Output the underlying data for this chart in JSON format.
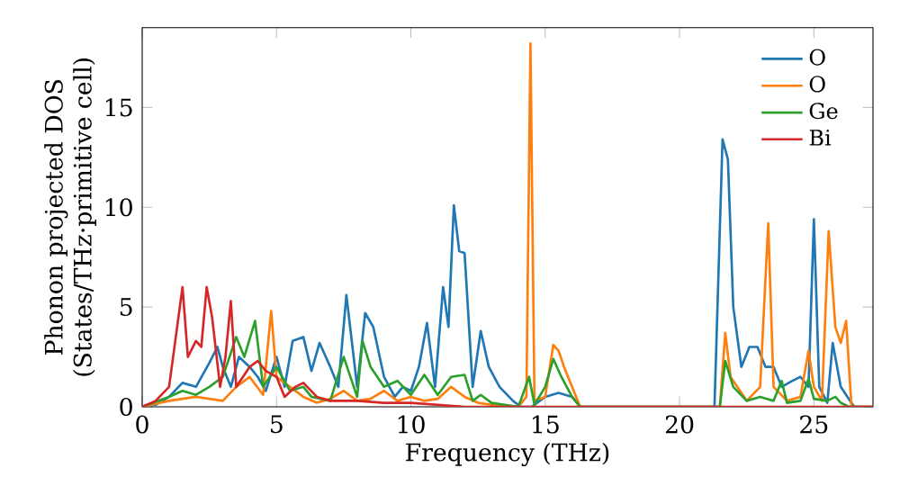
{
  "chart_data": {
    "type": "line",
    "xlabel": "Frequency (THz)",
    "ylabel": "Phonon projected DOS\n(States/THz·primitive cell)",
    "xlim": [
      0,
      27.2
    ],
    "ylim": [
      0,
      19
    ],
    "xticks": [
      0,
      5,
      10,
      15,
      20,
      25
    ],
    "yticks": [
      0,
      5,
      10,
      15
    ],
    "legend": "top right",
    "grid": false,
    "series": [
      {
        "name": "O",
        "color": "#1f77b4",
        "x": [
          0,
          0.5,
          1,
          1.5,
          2,
          2.5,
          2.8,
          3,
          3.3,
          3.6,
          4,
          4.3,
          4.6,
          5,
          5.3,
          5.6,
          6,
          6.3,
          6.6,
          7,
          7.3,
          7.6,
          8,
          8.3,
          8.6,
          9,
          9.4,
          9.7,
          10,
          10.3,
          10.6,
          10.9,
          11.2,
          11.4,
          11.6,
          11.8,
          12,
          12.3,
          12.6,
          12.9,
          13.3,
          13.8,
          14.1,
          14.5,
          15,
          15.5,
          16,
          16.3,
          21.3,
          21.6,
          21.8,
          22,
          22.3,
          22.6,
          22.9,
          23.2,
          23.5,
          23.8,
          24.2,
          24.5,
          24.8,
          25,
          25.2,
          25.5,
          25.7,
          26,
          26.3,
          26.5,
          27.2
        ],
        "values": [
          0,
          0.1,
          0.5,
          1.2,
          1.0,
          2.2,
          3.0,
          2.0,
          1.0,
          2.5,
          2.0,
          1.5,
          0.8,
          2.5,
          1.0,
          3.3,
          3.5,
          1.8,
          3.2,
          2.0,
          1.0,
          5.6,
          1.0,
          4.7,
          4.0,
          1.5,
          0.5,
          1.0,
          0.8,
          2.0,
          4.2,
          1.0,
          6.0,
          4.0,
          10.1,
          7.8,
          7.7,
          1.0,
          3.8,
          2.0,
          1.0,
          0.3,
          0,
          0,
          0.5,
          0.7,
          0.5,
          0,
          0,
          13.4,
          12.4,
          5,
          2.0,
          3.0,
          3.0,
          2.0,
          2.0,
          1.0,
          1.3,
          1.5,
          1.0,
          9.4,
          1.0,
          0.2,
          3.2,
          1.0,
          0.4,
          0,
          0
        ]
      },
      {
        "name": "O",
        "color": "#ff7f0e",
        "x": [
          0,
          1,
          2,
          3,
          3.5,
          4,
          4.5,
          4.8,
          5,
          5.5,
          6,
          6.5,
          7,
          7.5,
          8,
          8.5,
          9,
          9.5,
          10,
          10.5,
          11,
          11.5,
          12,
          12.5,
          13,
          14,
          14.3,
          14.45,
          14.6,
          15,
          15.3,
          15.5,
          15.7,
          16,
          16.3,
          21.5,
          21.7,
          21.9,
          22.5,
          23,
          23.3,
          23.5,
          24,
          24.5,
          24.8,
          25,
          25.3,
          25.55,
          25.8,
          26,
          26.2,
          26.4,
          27.2
        ],
        "values": [
          0,
          0.3,
          0.5,
          0.3,
          1.0,
          1.5,
          0.6,
          4.8,
          1.5,
          1.0,
          0.5,
          0.2,
          0.4,
          0.8,
          0.3,
          0.4,
          0.8,
          0.3,
          0.5,
          0.3,
          0.4,
          1.0,
          0.5,
          0.2,
          0.1,
          0,
          0.5,
          18.2,
          0.3,
          0.5,
          3.1,
          2.8,
          2.0,
          1.0,
          0,
          0,
          3.7,
          1.5,
          0.3,
          1.0,
          9.2,
          1.0,
          0.3,
          0.5,
          2.8,
          1.0,
          0.3,
          8.8,
          4.0,
          3.2,
          4.3,
          0,
          0
        ]
      },
      {
        "name": "Ge",
        "color": "#2ca02c",
        "x": [
          0,
          1,
          1.5,
          2,
          2.5,
          3,
          3.5,
          3.8,
          4.2,
          4.5,
          5,
          5.5,
          6,
          6.3,
          7,
          7.5,
          8,
          8.2,
          8.5,
          9,
          9.5,
          10,
          10.5,
          11,
          11.5,
          12,
          12.3,
          12.6,
          13,
          14,
          14.4,
          14.6,
          15,
          15.3,
          15.6,
          16,
          16.3,
          21.5,
          21.7,
          22,
          22.5,
          23,
          23.5,
          23.8,
          24,
          24.5,
          24.8,
          25,
          25.5,
          25.8,
          26,
          26.3,
          27.2
        ],
        "values": [
          0,
          0.5,
          0.8,
          0.6,
          1.0,
          1.5,
          3.5,
          2.5,
          4.3,
          1.0,
          2.0,
          0.8,
          1.0,
          0.5,
          0.3,
          2.5,
          0.5,
          3.3,
          2.0,
          1.0,
          1.3,
          0.6,
          1.6,
          0.6,
          1.5,
          1.6,
          0.3,
          0.6,
          0.2,
          0,
          1.5,
          0.1,
          1.0,
          2.4,
          1.5,
          0.5,
          0,
          0,
          2.3,
          1.0,
          0.3,
          0.5,
          0.3,
          1.3,
          0.2,
          0.3,
          1.4,
          0.4,
          0.3,
          0.5,
          0.2,
          0,
          0
        ]
      },
      {
        "name": "Bi",
        "color": "#d62728",
        "x": [
          0,
          0.5,
          1,
          1.3,
          1.5,
          1.7,
          2,
          2.2,
          2.4,
          2.6,
          2.9,
          3.1,
          3.3,
          3.5,
          4,
          4.3,
          4.6,
          5,
          5.3,
          5.7,
          6,
          6.5,
          7,
          8,
          9,
          10,
          11,
          12,
          13,
          27.2
        ],
        "values": [
          0,
          0.3,
          1.0,
          4.0,
          6.0,
          2.5,
          3.3,
          3.0,
          6.0,
          4.5,
          1.0,
          2.5,
          5.3,
          1.0,
          2.0,
          2.3,
          1.8,
          1.5,
          0.5,
          1.0,
          1.2,
          0.5,
          0.3,
          0.3,
          0.2,
          0.2,
          0.1,
          0,
          0,
          0
        ]
      }
    ]
  }
}
